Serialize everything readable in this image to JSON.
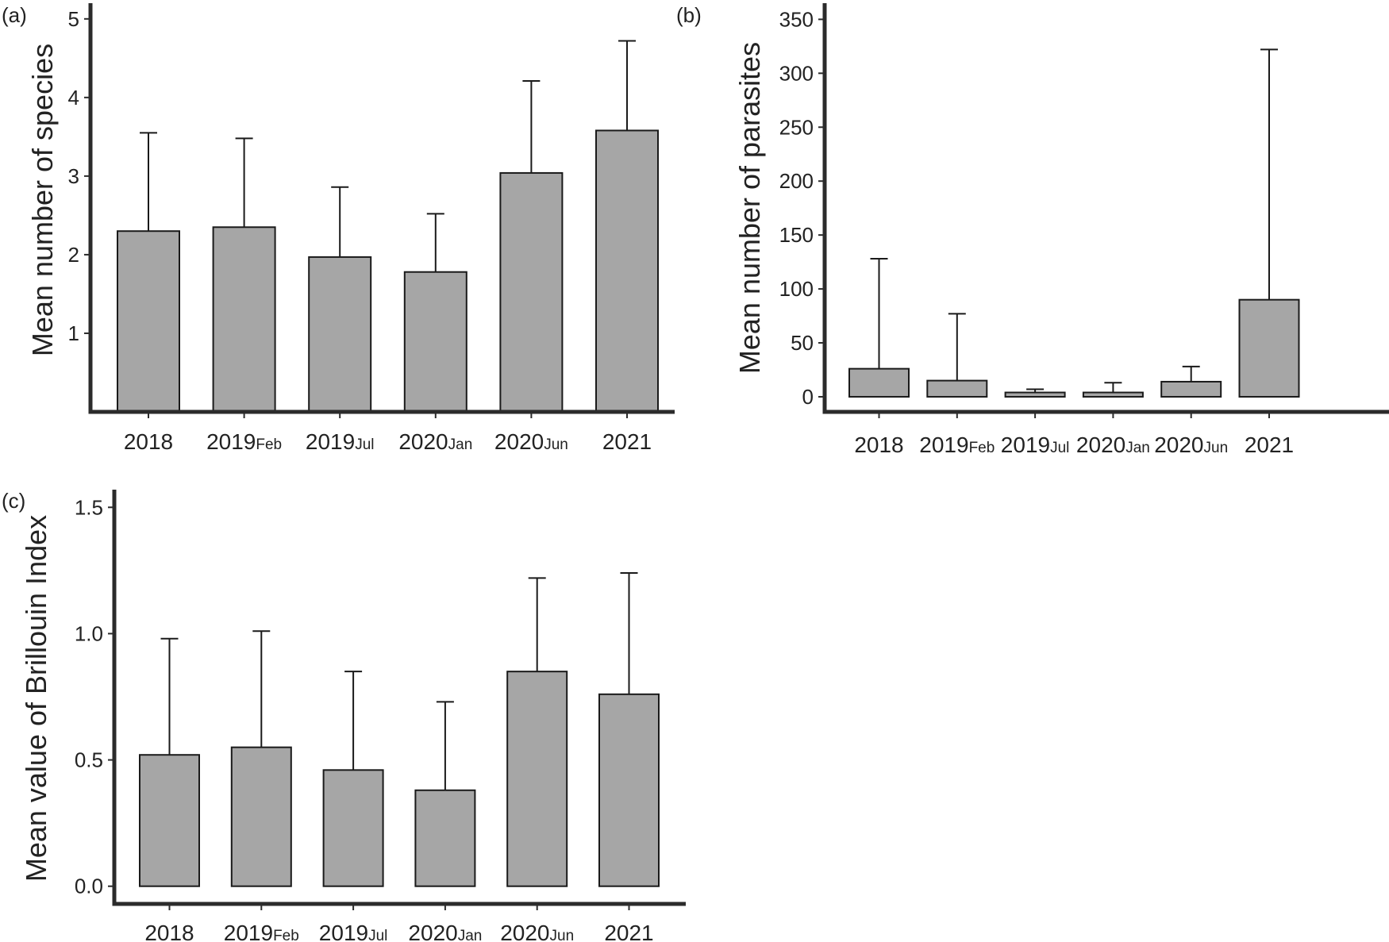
{
  "chart_data": [
    {
      "type": "bar",
      "panel_label": "(a)",
      "ylabel": "Mean number of species",
      "categories": [
        {
          "main": "2018",
          "sub": ""
        },
        {
          "main": "2019",
          "sub": "Feb"
        },
        {
          "main": "2019",
          "sub": "Jul"
        },
        {
          "main": "2020",
          "sub": "Jan"
        },
        {
          "main": "2020",
          "sub": "Jun"
        },
        {
          "main": "2021",
          "sub": ""
        }
      ],
      "values": [
        2.3,
        2.35,
        1.97,
        1.78,
        3.04,
        3.58
      ],
      "error_upper": [
        3.55,
        3.48,
        2.86,
        2.52,
        4.21,
        4.72
      ],
      "ylim": [
        0,
        5.2
      ],
      "yticks": [
        1,
        2,
        3,
        4,
        5
      ],
      "ytick_labels": [
        "1",
        "2",
        "3",
        "4",
        "5"
      ]
    },
    {
      "type": "bar",
      "panel_label": "(b)",
      "ylabel": "Mean number of parasites",
      "categories": [
        {
          "main": "2018",
          "sub": ""
        },
        {
          "main": "2019",
          "sub": "Feb"
        },
        {
          "main": "2019",
          "sub": "Jul"
        },
        {
          "main": "2020",
          "sub": "Jan"
        },
        {
          "main": "2020",
          "sub": "Jun"
        },
        {
          "main": "2021",
          "sub": ""
        }
      ],
      "values": [
        26,
        15,
        4,
        4,
        14,
        90
      ],
      "error_upper": [
        128,
        77,
        7,
        13,
        28,
        322
      ],
      "ylim": [
        -14,
        365
      ],
      "yticks": [
        0,
        50,
        100,
        150,
        200,
        250,
        300,
        350
      ],
      "ytick_labels": [
        "0",
        "50",
        "100",
        "150",
        "200",
        "250",
        "300",
        "350"
      ]
    },
    {
      "type": "bar",
      "panel_label": "(c)",
      "ylabel": "Mean value of Brillouin Index",
      "categories": [
        {
          "main": "2018",
          "sub": ""
        },
        {
          "main": "2019",
          "sub": "Feb"
        },
        {
          "main": "2019",
          "sub": "Jul"
        },
        {
          "main": "2020",
          "sub": "Jan"
        },
        {
          "main": "2020",
          "sub": "Jun"
        },
        {
          "main": "2021",
          "sub": ""
        }
      ],
      "values": [
        0.52,
        0.55,
        0.46,
        0.38,
        0.85,
        0.76
      ],
      "error_upper": [
        0.98,
        1.01,
        0.85,
        0.73,
        1.22,
        1.24
      ],
      "ylim": [
        -0.07,
        1.57
      ],
      "yticks": [
        0.0,
        0.5,
        1.0,
        1.5
      ],
      "ytick_labels": [
        "0.0",
        "0.5",
        "1.0",
        "1.5"
      ]
    }
  ]
}
